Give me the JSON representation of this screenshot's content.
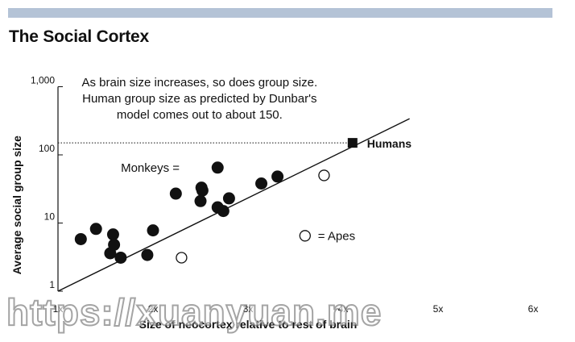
{
  "title": "The Social Cortex",
  "chart_data": {
    "type": "scatter",
    "title": "The Social Cortex",
    "xlabel": "Size of neocortex relative to rest of brain",
    "ylabel": "Average social group size",
    "y_scale": "log",
    "x_ticks": [
      "1x",
      "2x",
      "3x",
      "4x",
      "5x",
      "6x"
    ],
    "y_ticks": [
      "1",
      "10",
      "100",
      "1,000"
    ],
    "xlim": [
      1,
      6
    ],
    "ylim": [
      1,
      1000
    ],
    "annotation": "As brain size increases, so does group size. Human group size as predicted by Dunbar's model comes out to about 150.",
    "annotation_lines": [
      "As brain size increases, so does group size.",
      "Human group size as predicted by Dunbar's",
      "model comes out to about 150."
    ],
    "legend": {
      "monkeys": "Monkeys =",
      "apes": "= Apes"
    },
    "humans": {
      "label": "Humans",
      "x": 4.1,
      "y": 150
    },
    "reference_line": {
      "y": 150,
      "style": "dotted"
    },
    "trend_line": [
      {
        "x": 1,
        "y": 1
      },
      {
        "x": 4.7,
        "y": 340
      }
    ],
    "series": [
      {
        "name": "Monkeys",
        "marker": "filled-circle",
        "points": [
          {
            "x": 1.24,
            "y": 5.8
          },
          {
            "x": 1.4,
            "y": 8.2
          },
          {
            "x": 1.55,
            "y": 3.6
          },
          {
            "x": 1.58,
            "y": 6.8
          },
          {
            "x": 1.59,
            "y": 4.8
          },
          {
            "x": 1.66,
            "y": 3.1
          },
          {
            "x": 1.94,
            "y": 3.4
          },
          {
            "x": 2.0,
            "y": 7.8
          },
          {
            "x": 2.24,
            "y": 27
          },
          {
            "x": 2.51,
            "y": 33
          },
          {
            "x": 2.52,
            "y": 30
          },
          {
            "x": 2.5,
            "y": 21
          },
          {
            "x": 2.68,
            "y": 65
          },
          {
            "x": 2.68,
            "y": 17
          },
          {
            "x": 2.74,
            "y": 15
          },
          {
            "x": 2.8,
            "y": 23
          },
          {
            "x": 3.14,
            "y": 38
          },
          {
            "x": 3.31,
            "y": 48
          }
        ]
      },
      {
        "name": "Apes",
        "marker": "open-circle",
        "points": [
          {
            "x": 2.3,
            "y": 3.1
          },
          {
            "x": 3.6,
            "y": 6.5
          },
          {
            "x": 3.8,
            "y": 50
          }
        ]
      }
    ]
  },
  "watermark": "https://xuanyuan.me"
}
